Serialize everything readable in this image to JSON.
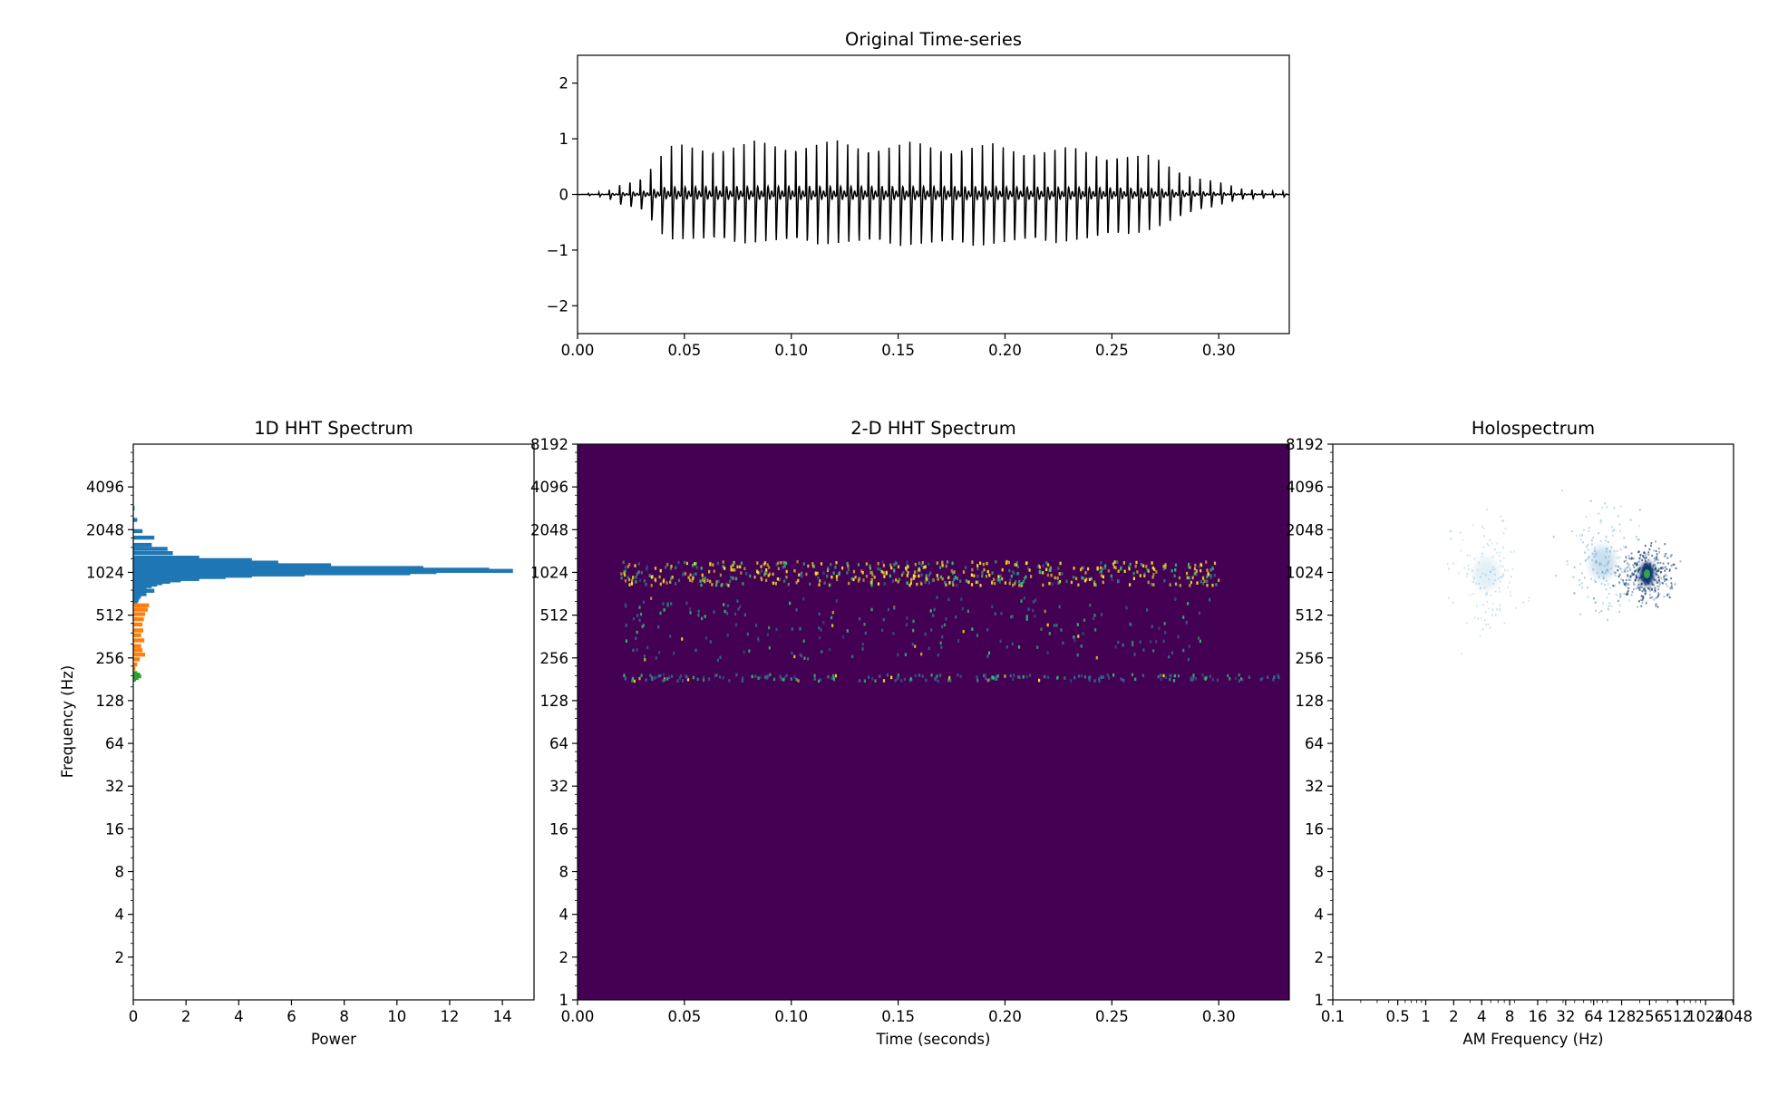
{
  "chart_data": [
    {
      "id": "timeseries",
      "type": "line",
      "title": "Original Time-series",
      "xlabel": "",
      "ylabel": "",
      "xlim": [
        0,
        0.333
      ],
      "ylim": [
        -2.5,
        2.5
      ],
      "xticks": [
        0.0,
        0.05,
        0.1,
        0.15,
        0.2,
        0.25,
        0.3
      ],
      "xtick_labels": [
        "0.00",
        "0.05",
        "0.10",
        "0.15",
        "0.20",
        "0.25",
        "0.30"
      ],
      "yticks": [
        -2,
        -1,
        0,
        1,
        2
      ],
      "ytick_labels": [
        "−2",
        "−1",
        "0",
        "1",
        "2"
      ],
      "color": "#000000",
      "pulse_period_s": 0.00485,
      "envelope": {
        "t": [
          0.0,
          0.013,
          0.02,
          0.03,
          0.042,
          0.06,
          0.1,
          0.18,
          0.24,
          0.27,
          0.29,
          0.31,
          0.333
        ],
        "pos": [
          0.0,
          0.05,
          0.2,
          0.35,
          0.9,
          0.95,
          1.0,
          0.95,
          0.85,
          0.7,
          0.35,
          0.12,
          0.05
        ],
        "neg": [
          0.0,
          -0.05,
          -0.2,
          -0.3,
          -0.82,
          -0.88,
          -0.9,
          -0.95,
          -0.85,
          -0.65,
          -0.3,
          -0.1,
          -0.04
        ]
      }
    },
    {
      "id": "hht1d",
      "type": "bar",
      "orientation": "horizontal",
      "title": "1D HHT Spectrum",
      "xlabel": "Power",
      "ylabel": "Frequency (Hz)",
      "xlim": [
        0,
        15.2
      ],
      "ylim": [
        1,
        8192
      ],
      "yscale": "log2",
      "xticks": [
        0,
        2,
        4,
        6,
        8,
        10,
        12,
        14
      ],
      "xtick_labels": [
        "0",
        "2",
        "4",
        "6",
        "8",
        "10",
        "12",
        "14"
      ],
      "yticks": [
        2,
        4,
        8,
        16,
        32,
        64,
        128,
        256,
        512,
        1024,
        2048,
        4096
      ],
      "ytick_labels": [
        "2",
        "4",
        "8",
        "16",
        "32",
        "64",
        "128",
        "256",
        "512",
        "1024",
        "2048",
        "4096"
      ],
      "series": [
        {
          "color": "#1f77b4",
          "freq": [
            2900,
            2400,
            2000,
            1800,
            1600,
            1500,
            1400,
            1300,
            1250,
            1200,
            1150,
            1100,
            1070,
            1050,
            1030,
            1010,
            990,
            970,
            950,
            920,
            900,
            880,
            860,
            840,
            820,
            800,
            780,
            760,
            740,
            720,
            700,
            680,
            650,
            620
          ],
          "values": [
            0.05,
            0.15,
            0.35,
            0.8,
            0.7,
            1.3,
            1.5,
            2.5,
            4.5,
            5.5,
            7.5,
            11.0,
            13.5,
            14.4,
            11.5,
            10.5,
            6.5,
            4.5,
            3.5,
            2.5,
            1.8,
            1.4,
            1.1,
            0.9,
            0.7,
            0.5,
            0.45,
            0.8,
            0.35,
            0.5,
            0.3,
            0.25,
            0.2,
            0.15
          ]
        },
        {
          "color": "#ff7f0e",
          "freq": [
            600,
            560,
            520,
            480,
            440,
            400,
            370,
            340,
            310,
            290,
            270,
            250,
            230,
            215
          ],
          "values": [
            0.6,
            0.55,
            0.45,
            0.4,
            0.35,
            0.38,
            0.3,
            0.42,
            0.3,
            0.35,
            0.45,
            0.25,
            0.15,
            0.08
          ]
        },
        {
          "color": "#2ca02c",
          "freq": [
            200,
            195,
            190,
            185,
            180
          ],
          "values": [
            0.15,
            0.25,
            0.3,
            0.2,
            0.1
          ]
        }
      ]
    },
    {
      "id": "hht2d",
      "type": "heatmap",
      "title": "2-D HHT Spectrum",
      "xlabel": "Time (seconds)",
      "ylabel": "",
      "xlim": [
        0,
        0.333
      ],
      "ylim": [
        1,
        8192
      ],
      "yscale": "log2",
      "xticks": [
        0.0,
        0.05,
        0.1,
        0.15,
        0.2,
        0.25,
        0.3
      ],
      "xtick_labels": [
        "0.00",
        "0.05",
        "0.10",
        "0.15",
        "0.20",
        "0.25",
        "0.30"
      ],
      "yticks": [
        1,
        2,
        4,
        8,
        16,
        32,
        64,
        128,
        256,
        512,
        1024,
        2048,
        4096,
        8192
      ],
      "ytick_labels": [
        "1",
        "2",
        "4",
        "8",
        "16",
        "32",
        "64",
        "128",
        "256",
        "512",
        "1024",
        "2048",
        "4096",
        "8192"
      ],
      "background": "#440154",
      "colormap": [
        "#440154",
        "#31688e",
        "#35b779",
        "#fde725"
      ],
      "bands": [
        {
          "t_start": 0.02,
          "t_end": 0.3,
          "f_low": 850,
          "f_high": 1250,
          "level": 0.9
        },
        {
          "t_start": 0.02,
          "t_end": 0.3,
          "f_low": 250,
          "f_high": 700,
          "level": 0.35
        },
        {
          "t_start": 0.02,
          "t_end": 0.33,
          "f_low": 180,
          "f_high": 200,
          "level": 0.3
        }
      ]
    },
    {
      "id": "holo",
      "type": "heatmap",
      "title": "Holospectrum",
      "xlabel": "AM Frequency (Hz)",
      "ylabel": "",
      "xlim": [
        0.1,
        2048
      ],
      "ylim": [
        1,
        8192
      ],
      "xscale": "log",
      "yscale": "log2",
      "xticks": [
        0.1,
        0.5,
        1,
        2,
        4,
        8,
        16,
        32,
        64,
        128,
        256,
        512,
        1024,
        2048
      ],
      "xtick_labels": [
        "0.1",
        "0.5",
        "1",
        "2",
        "4",
        "8",
        "16",
        "32",
        "64",
        "128",
        "256",
        "512",
        "1024",
        "2048"
      ],
      "yticks": [
        1,
        2,
        4,
        8,
        16,
        32,
        64,
        128,
        256,
        512,
        1024,
        2048,
        4096,
        8192
      ],
      "ytick_labels": [
        "1",
        "2",
        "4",
        "8",
        "16",
        "32",
        "64",
        "128",
        "256",
        "512",
        "1024",
        "2048",
        "4096",
        "8192"
      ],
      "blobs": [
        {
          "am": 4.5,
          "f": 1000,
          "level": 0.25,
          "color": "#6aaed6"
        },
        {
          "am": 80,
          "f": 1200,
          "level": 0.45,
          "color": "#3787c0"
        },
        {
          "am": 240,
          "f": 1000,
          "level": 1.0,
          "color": "#08306b",
          "core": "#31a354"
        }
      ]
    }
  ]
}
